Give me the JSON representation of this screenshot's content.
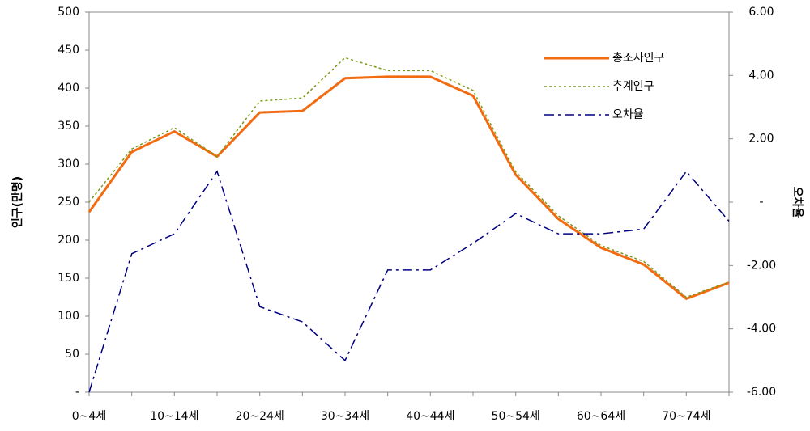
{
  "chart_data": {
    "type": "line",
    "ylabel": "인구(만명)",
    "y2label": "오차율",
    "categories": [
      "0~4세",
      null,
      "10~14세",
      null,
      "20~24세",
      null,
      "30~34세",
      null,
      "40~44세",
      null,
      "50~54세",
      null,
      "60~64세",
      null,
      "70~74세",
      null
    ],
    "ylim": [
      0,
      500
    ],
    "yticks": [
      {
        "value": 0,
        "label": "-"
      },
      50,
      100,
      150,
      200,
      250,
      300,
      350,
      400,
      450,
      500
    ],
    "y2lim": [
      -6,
      6
    ],
    "y2ticks": [
      {
        "value": -6,
        "label": "-6.00"
      },
      {
        "value": -4,
        "label": "-4.00"
      },
      {
        "value": -2,
        "label": "-2.00"
      },
      {
        "value": 0,
        "label": "-"
      },
      {
        "value": 2,
        "label": "2.00"
      },
      {
        "value": 4,
        "label": "4.00"
      },
      {
        "value": 6,
        "label": "6.00"
      }
    ],
    "legend": "upper right",
    "series": [
      {
        "name": "총조사인구",
        "color": "#f26b10",
        "style": "solid",
        "values": [
          237,
          316,
          343,
          310,
          368,
          370,
          413,
          415,
          415,
          390,
          286,
          228,
          190,
          168,
          123,
          144
        ]
      },
      {
        "name": "추계인구",
        "color": "#7a9a1a",
        "style": "dotted",
        "values": [
          250,
          320,
          348,
          310,
          383,
          387,
          440,
          423,
          423,
          397,
          290,
          232,
          193,
          172,
          125,
          145
        ]
      },
      {
        "name": "오차율",
        "color": "#000080",
        "style": "dash-dot",
        "axis": "y2",
        "values": [
          -6.0,
          -1.63,
          -1.0,
          0.97,
          -3.3,
          -3.78,
          -5.0,
          -2.14,
          -2.14,
          -1.3,
          -0.36,
          -1.0,
          -1.0,
          -0.85,
          0.97,
          -0.6
        ]
      }
    ]
  }
}
